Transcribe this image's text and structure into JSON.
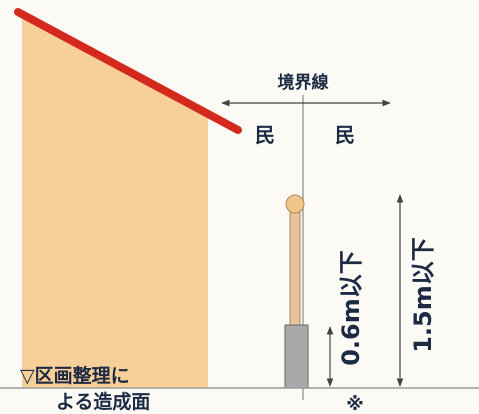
{
  "labels": {
    "boundary": "境界線",
    "left_owner": "民",
    "right_owner": "民",
    "fence_low": "0.6m以下",
    "fence_high": "1.5m以下",
    "ground_line1": "▽区画整理に",
    "ground_line2": "よる造成面",
    "note": "※"
  }
}
